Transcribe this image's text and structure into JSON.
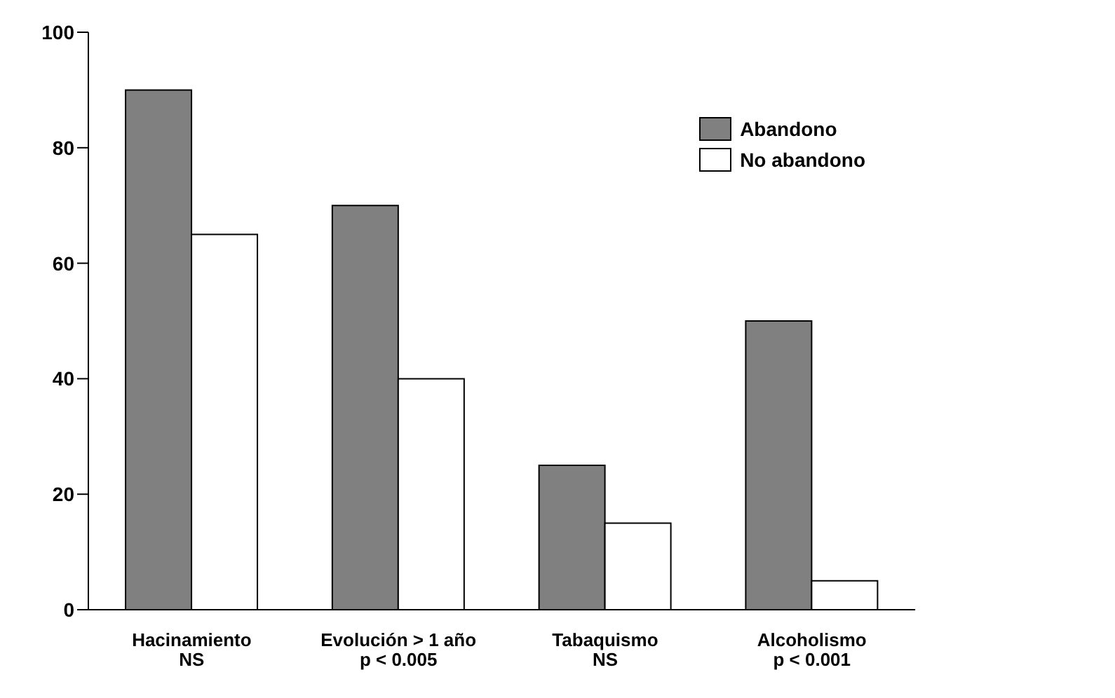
{
  "chart_data": {
    "type": "bar",
    "categories": [
      "Hacinamiento\nNS",
      "Evolución > 1 año\np < 0.005",
      "Tabaquismo\nNS",
      "Alcoholismo\np < 0.001"
    ],
    "series": [
      {
        "name": "Abandono",
        "color": "#808080",
        "values": [
          90,
          70,
          25,
          50
        ]
      },
      {
        "name": "No abandono",
        "color": "#ffffff",
        "values": [
          65,
          40,
          15,
          5
        ]
      }
    ],
    "ylim": [
      0,
      100
    ],
    "yticks": [
      0,
      20,
      40,
      60,
      80,
      100
    ],
    "grid": false,
    "legend": "top right"
  }
}
